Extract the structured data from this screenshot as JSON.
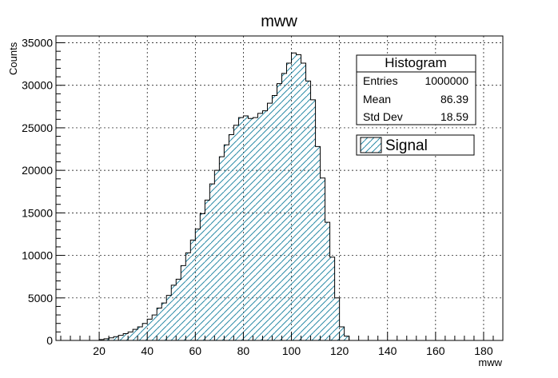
{
  "chart_data": {
    "type": "bar",
    "title": "mww",
    "xlabel": "mww",
    "ylabel": "Counts",
    "xlim": [
      2,
      188
    ],
    "ylim": [
      0,
      35800
    ],
    "grid": true,
    "x_ticks": [
      20,
      40,
      60,
      80,
      100,
      120,
      140,
      160,
      180
    ],
    "y_ticks": [
      0,
      5000,
      10000,
      15000,
      20000,
      25000,
      30000,
      35000
    ],
    "bin_width": 2,
    "bin_start": 20,
    "values": [
      100,
      200,
      300,
      450,
      600,
      800,
      1000,
      1300,
      1600,
      2000,
      2500,
      3000,
      3800,
      4400,
      5300,
      6500,
      7200,
      8800,
      10300,
      11800,
      13100,
      14900,
      16500,
      18400,
      20000,
      21600,
      23000,
      24200,
      25300,
      26200,
      26400,
      26100,
      26200,
      26700,
      27000,
      27900,
      28800,
      30200,
      31400,
      32600,
      33800,
      33600,
      32600,
      30500,
      28300,
      22800,
      19100,
      13900,
      9800,
      5000,
      1600,
      500
    ],
    "series": [
      {
        "name": "Signal",
        "color": "#2a8aa6"
      }
    ],
    "stats": {
      "title": "Histogram",
      "rows": [
        {
          "label": "Entries",
          "value": "1000000"
        },
        {
          "label": "Mean",
          "value": "86.39"
        },
        {
          "label": "Std Dev",
          "value": "18.59"
        }
      ]
    },
    "legend_placement": "top-right"
  }
}
